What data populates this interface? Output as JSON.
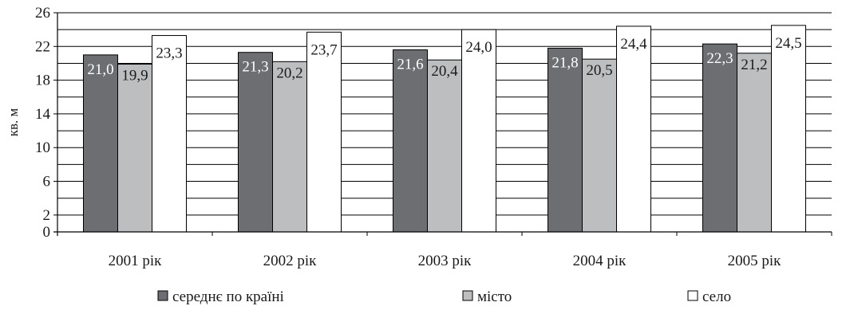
{
  "chart_data": {
    "type": "bar",
    "title": "",
    "xlabel": "",
    "ylabel": "кв. м",
    "ylim": [
      0,
      26
    ],
    "yticks": [
      0,
      2,
      6,
      10,
      14,
      18,
      22,
      26
    ],
    "grid": true,
    "legend_position": "bottom",
    "categories": [
      "2001 рік",
      "2002 рік",
      "2003 рік",
      "2004 рік",
      "2005 рік"
    ],
    "series": [
      {
        "name": "середнє по країні",
        "color": "#6d6e71",
        "values": [
          21.0,
          21.3,
          21.6,
          21.8,
          22.3
        ],
        "labels": [
          "21,0",
          "21,3",
          "21,6",
          "21,8",
          "22,3"
        ]
      },
      {
        "name": "місто",
        "color": "#bcbec0",
        "values": [
          19.9,
          20.2,
          20.4,
          20.5,
          21.2
        ],
        "labels": [
          "19,9",
          "20,2",
          "20,4",
          "20,5",
          "21,2"
        ]
      },
      {
        "name": "село",
        "color": "#ffffff",
        "values": [
          23.3,
          23.7,
          24.0,
          24.4,
          24.5
        ],
        "labels": [
          "23,3",
          "23,7",
          "24,0",
          "24,4",
          "24,5"
        ]
      }
    ]
  }
}
